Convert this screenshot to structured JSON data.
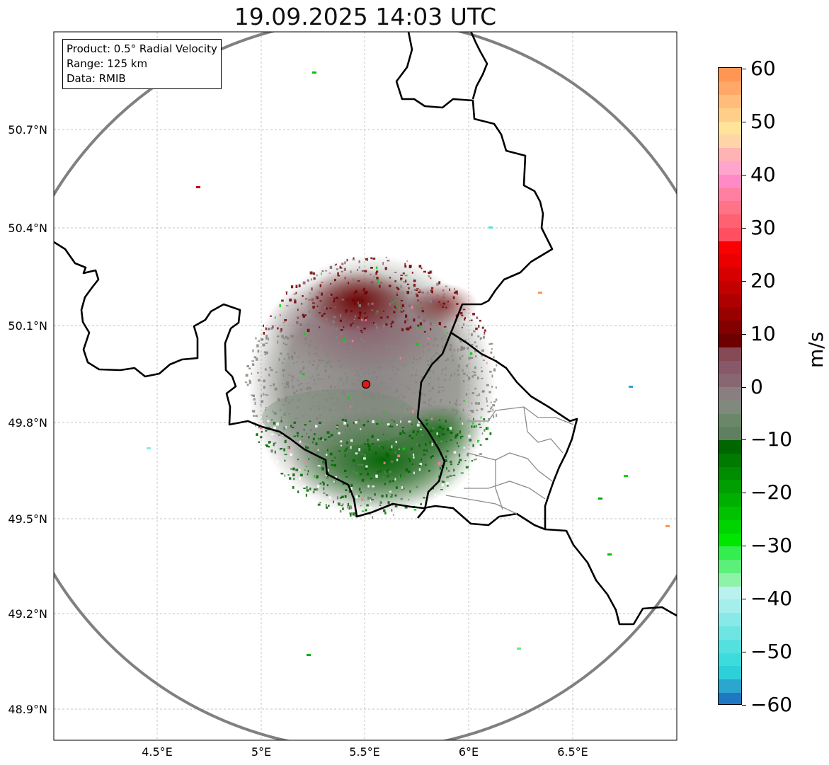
{
  "title": "19.09.2025 14:03 UTC",
  "info": {
    "product": "Product: 0.5° Radial Velocity",
    "range": "Range: 125 km",
    "data": "Data: RMIB"
  },
  "axes": {
    "lon_ticks": [
      "4.5°E",
      "5°E",
      "5.5°E",
      "6°E",
      "6.5°E"
    ],
    "lat_ticks": [
      "50.7°N",
      "50.4°N",
      "50.1°N",
      "49.8°N",
      "49.5°N",
      "49.2°N",
      "48.9°N"
    ]
  },
  "radar_site": {
    "lon": 5.505,
    "lat": 49.914
  },
  "colorbar": {
    "unit": "m/s",
    "vmin": -60,
    "vmax": 60,
    "ticks": [
      "60",
      "50",
      "40",
      "30",
      "20",
      "10",
      "0",
      "−10",
      "−20",
      "−30",
      "−40",
      "−50",
      "−60"
    ],
    "colors": [
      "#1f78c1",
      "#2aa6cf",
      "#2dd0d8",
      "#3ddcdc",
      "#55e0e0",
      "#6ee5e3",
      "#88e9e8",
      "#a4eeec",
      "#b9f1ef",
      "#8ef2a8",
      "#5cf07a",
      "#33ee4e",
      "#00e600",
      "#00d400",
      "#00c200",
      "#00b000",
      "#009e00",
      "#008c00",
      "#007a00",
      "#006600",
      "#5e8060",
      "#6a8868",
      "#7f8a7d",
      "#8a7f80",
      "#896772",
      "#875868",
      "#854a55",
      "#6e0000",
      "#830000",
      "#990000",
      "#ae0000",
      "#c20000",
      "#d60000",
      "#ea0000",
      "#fa0000",
      "#ff4f60",
      "#ff6172",
      "#ff7386",
      "#ff7fa1",
      "#ff8ac6",
      "#ffa4cc",
      "#ffb3b3",
      "#ffd5a8",
      "#ffe39a",
      "#ffcf8a",
      "#ffbc7a",
      "#ffa868",
      "#ff9654"
    ]
  }
}
